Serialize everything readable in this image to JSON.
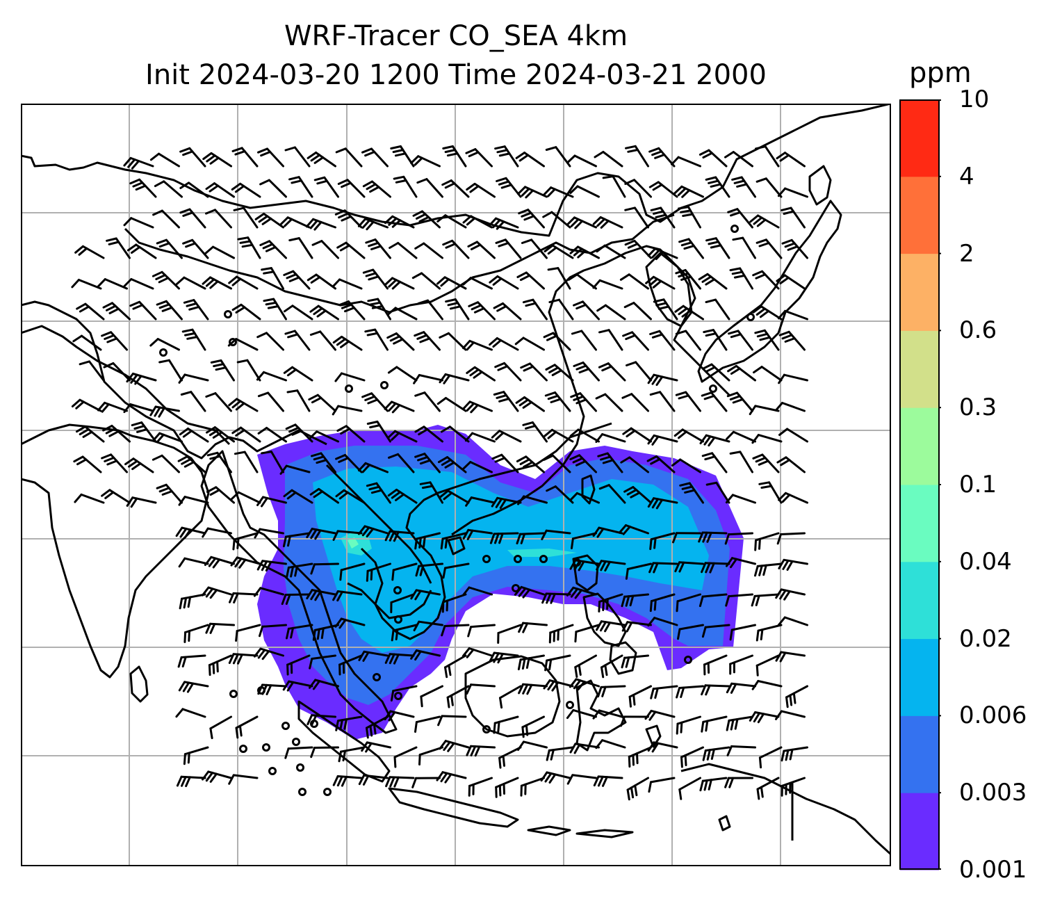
{
  "title": {
    "line1": "WRF-Tracer CO_SEA 4km",
    "line2": "Init 2024-03-20 1200 Time 2024-03-21 2000"
  },
  "colorbar": {
    "unit": "ppm",
    "ticks": [
      "0.001",
      "0.003",
      "0.006",
      "0.02",
      "0.04",
      "0.1",
      "0.3",
      "0.6",
      "2",
      "4",
      "10"
    ],
    "colors": [
      "#6a2cff",
      "#3472f0",
      "#05b4ef",
      "#2ee0d8",
      "#6afcc0",
      "#9cfb9c",
      "#d2e08a",
      "#fdb165",
      "#ff7039",
      "#ff2a14"
    ]
  },
  "map": {
    "gridlines": true,
    "coastline_color": "#000000",
    "grid_color": "#b0b0b0"
  }
}
